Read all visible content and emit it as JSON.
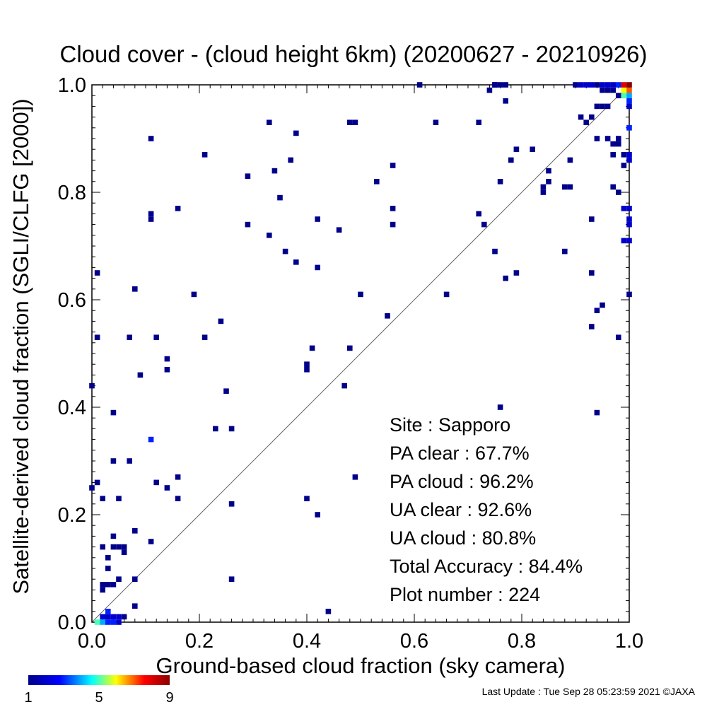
{
  "chart_data": {
    "type": "heatmap",
    "title": "Cloud cover - (cloud height 6km)  (20200627 - 20210926)",
    "xlabel": "Ground-based cloud fraction (sky camera)",
    "ylabel": "Satellite-derived cloud fraction (SGLI/CLFG [2000])",
    "xlim": [
      0.0,
      1.0
    ],
    "ylim": [
      0.0,
      1.0
    ],
    "x_ticks": [
      "0.0",
      "0.2",
      "0.4",
      "0.6",
      "0.8",
      "1.0"
    ],
    "y_ticks": [
      "0.0",
      "0.2",
      "0.4",
      "0.6",
      "0.8",
      "1.0"
    ],
    "diagonal_line": true,
    "colorbar": {
      "min_label": "1",
      "mid_label": "5",
      "max_label": "9",
      "colors": [
        "#00008b",
        "#0000ff",
        "#00ffff",
        "#ffff00",
        "#ff0000",
        "#8b0000"
      ]
    },
    "stats": [
      {
        "label": "Site : Sapporo"
      },
      {
        "label": "PA clear :  67.7%"
      },
      {
        "label": "PA cloud :  96.2%"
      },
      {
        "label": "UA clear :  92.6%"
      },
      {
        "label": "UA cloud :  80.8%"
      },
      {
        "label": "Total Accuracy :  84.4%"
      },
      {
        "label": "Plot number :       224"
      }
    ],
    "points": [
      [
        0.01,
        0.0,
        5
      ],
      [
        0.02,
        0.0,
        4
      ],
      [
        0.03,
        0.0,
        3
      ],
      [
        0.04,
        0.0,
        3
      ],
      [
        0.05,
        0.0,
        2
      ],
      [
        0.02,
        0.01,
        2
      ],
      [
        0.03,
        0.01,
        2
      ],
      [
        0.04,
        0.01,
        2
      ],
      [
        0.05,
        0.01,
        2
      ],
      [
        0.03,
        0.02,
        3
      ],
      [
        0.06,
        0.01,
        1
      ],
      [
        0.08,
        0.03,
        1
      ],
      [
        0.02,
        0.07,
        1
      ],
      [
        0.03,
        0.07,
        1
      ],
      [
        0.04,
        0.07,
        1
      ],
      [
        0.05,
        0.08,
        1
      ],
      [
        0.02,
        0.06,
        1
      ],
      [
        0.03,
        0.1,
        1
      ],
      [
        0.03,
        0.12,
        1
      ],
      [
        0.02,
        0.14,
        1
      ],
      [
        0.04,
        0.14,
        1
      ],
      [
        0.05,
        0.14,
        1
      ],
      [
        0.06,
        0.14,
        1
      ],
      [
        0.06,
        0.13,
        1
      ],
      [
        0.04,
        0.16,
        1
      ],
      [
        0.08,
        0.17,
        1
      ],
      [
        0.11,
        0.15,
        1
      ],
      [
        0.08,
        0.08,
        1
      ],
      [
        0.26,
        0.08,
        1
      ],
      [
        0.44,
        0.02,
        1
      ],
      [
        0.02,
        0.23,
        1
      ],
      [
        0.05,
        0.23,
        1
      ],
      [
        0.0,
        0.25,
        1
      ],
      [
        0.01,
        0.26,
        1
      ],
      [
        0.04,
        0.3,
        1
      ],
      [
        0.07,
        0.3,
        1
      ],
      [
        0.12,
        0.26,
        1
      ],
      [
        0.14,
        0.25,
        1
      ],
      [
        0.16,
        0.27,
        1
      ],
      [
        0.16,
        0.23,
        1
      ],
      [
        0.26,
        0.22,
        1
      ],
      [
        0.4,
        0.23,
        1
      ],
      [
        0.42,
        0.2,
        1
      ],
      [
        0.49,
        0.27,
        1
      ],
      [
        0.11,
        0.34,
        3
      ],
      [
        0.23,
        0.36,
        1
      ],
      [
        0.26,
        0.36,
        1
      ],
      [
        0.25,
        0.43,
        1
      ],
      [
        0.04,
        0.39,
        1
      ],
      [
        0.0,
        0.44,
        1
      ],
      [
        0.09,
        0.46,
        1
      ],
      [
        0.14,
        0.47,
        1
      ],
      [
        0.14,
        0.49,
        1
      ],
      [
        0.4,
        0.47,
        1
      ],
      [
        0.4,
        0.48,
        1
      ],
      [
        0.47,
        0.44,
        1
      ],
      [
        0.41,
        0.51,
        1
      ],
      [
        0.48,
        0.51,
        1
      ],
      [
        0.01,
        0.53,
        1
      ],
      [
        0.07,
        0.53,
        1
      ],
      [
        0.12,
        0.53,
        1
      ],
      [
        0.21,
        0.53,
        1
      ],
      [
        0.24,
        0.56,
        1
      ],
      [
        0.55,
        0.57,
        1
      ],
      [
        0.08,
        0.62,
        1
      ],
      [
        0.19,
        0.61,
        1
      ],
      [
        0.5,
        0.61,
        1
      ],
      [
        0.66,
        0.61,
        1
      ],
      [
        0.01,
        0.65,
        1
      ],
      [
        0.38,
        0.67,
        1
      ],
      [
        0.42,
        0.66,
        1
      ],
      [
        0.36,
        0.69,
        1
      ],
      [
        0.33,
        0.72,
        1
      ],
      [
        0.29,
        0.74,
        1
      ],
      [
        0.46,
        0.73,
        1
      ],
      [
        0.42,
        0.75,
        1
      ],
      [
        0.11,
        0.75,
        1
      ],
      [
        0.11,
        0.76,
        1
      ],
      [
        0.16,
        0.77,
        1
      ],
      [
        0.56,
        0.74,
        1
      ],
      [
        0.56,
        0.77,
        1
      ],
      [
        0.72,
        0.76,
        1
      ],
      [
        0.73,
        0.74,
        1
      ],
      [
        0.75,
        0.69,
        1
      ],
      [
        0.77,
        0.64,
        1
      ],
      [
        0.79,
        0.65,
        1
      ],
      [
        0.35,
        0.79,
        1
      ],
      [
        0.29,
        0.83,
        1
      ],
      [
        0.34,
        0.84,
        1
      ],
      [
        0.37,
        0.86,
        1
      ],
      [
        0.21,
        0.87,
        1
      ],
      [
        0.53,
        0.82,
        1
      ],
      [
        0.56,
        0.85,
        1
      ],
      [
        0.11,
        0.9,
        1
      ],
      [
        0.33,
        0.93,
        1
      ],
      [
        0.38,
        0.91,
        1
      ],
      [
        0.48,
        0.93,
        1
      ],
      [
        0.49,
        0.93,
        1
      ],
      [
        0.64,
        0.93,
        1
      ],
      [
        0.72,
        0.93,
        1
      ],
      [
        0.76,
        0.82,
        1
      ],
      [
        0.78,
        0.86,
        1
      ],
      [
        0.79,
        0.88,
        1
      ],
      [
        0.82,
        0.88,
        1
      ],
      [
        0.84,
        0.8,
        1
      ],
      [
        0.84,
        0.81,
        1
      ],
      [
        0.85,
        0.84,
        1
      ],
      [
        0.85,
        0.82,
        1
      ],
      [
        0.88,
        0.81,
        1
      ],
      [
        0.89,
        0.81,
        1
      ],
      [
        0.89,
        0.86,
        1
      ],
      [
        0.88,
        0.69,
        1
      ],
      [
        0.93,
        0.65,
        1
      ],
      [
        0.93,
        0.55,
        1
      ],
      [
        0.94,
        0.58,
        1
      ],
      [
        0.95,
        0.59,
        1
      ],
      [
        0.94,
        0.39,
        1
      ],
      [
        0.76,
        0.4,
        1
      ],
      [
        0.91,
        0.94,
        1
      ],
      [
        0.92,
        0.93,
        1
      ],
      [
        0.93,
        0.94,
        1
      ],
      [
        0.94,
        0.96,
        1
      ],
      [
        0.95,
        0.96,
        1
      ],
      [
        0.96,
        0.96,
        1
      ],
      [
        0.94,
        0.9,
        1
      ],
      [
        0.96,
        0.9,
        1
      ],
      [
        0.97,
        0.89,
        1
      ],
      [
        0.98,
        0.89,
        1
      ],
      [
        0.98,
        0.9,
        1
      ],
      [
        0.97,
        0.87,
        1
      ],
      [
        0.99,
        0.85,
        1
      ],
      [
        0.99,
        0.87,
        1
      ],
      [
        1.0,
        0.86,
        2
      ],
      [
        1.0,
        0.87,
        2
      ],
      [
        0.97,
        0.81,
        1
      ],
      [
        0.98,
        0.8,
        1
      ],
      [
        0.99,
        0.77,
        2
      ],
      [
        1.0,
        0.77,
        2
      ],
      [
        1.0,
        0.75,
        2
      ],
      [
        1.0,
        0.74,
        2
      ],
      [
        0.99,
        0.71,
        2
      ],
      [
        1.0,
        0.71,
        2
      ],
      [
        0.98,
        0.53,
        1
      ],
      [
        1.0,
        0.61,
        1
      ],
      [
        0.93,
        0.75,
        1
      ],
      [
        1.0,
        0.92,
        3
      ],
      [
        1.0,
        0.97,
        3
      ],
      [
        1.0,
        0.96,
        2
      ],
      [
        0.98,
        0.98,
        1
      ],
      [
        0.99,
        0.98,
        5
      ],
      [
        1.0,
        0.98,
        4
      ],
      [
        0.99,
        0.99,
        6
      ],
      [
        1.0,
        0.99,
        7
      ],
      [
        1.0,
        1.0,
        9
      ],
      [
        0.99,
        1.0,
        8
      ],
      [
        0.98,
        1.0,
        3
      ],
      [
        0.97,
        1.0,
        2
      ],
      [
        0.96,
        1.0,
        2
      ],
      [
        0.95,
        1.0,
        2
      ],
      [
        0.94,
        1.0,
        1
      ],
      [
        0.93,
        1.0,
        2
      ],
      [
        0.92,
        1.0,
        2
      ],
      [
        0.91,
        1.0,
        2
      ],
      [
        0.9,
        1.0,
        1
      ],
      [
        0.75,
        1.0,
        1
      ],
      [
        0.76,
        1.0,
        1
      ],
      [
        0.77,
        1.0,
        1
      ],
      [
        0.74,
        0.99,
        1
      ],
      [
        0.61,
        1.0,
        1
      ],
      [
        0.77,
        0.97,
        1
      ],
      [
        0.75,
        1.0,
        1
      ],
      [
        0.95,
        0.99,
        1
      ],
      [
        0.96,
        0.99,
        1
      ],
      [
        0.97,
        0.99,
        1
      ]
    ]
  },
  "footer": {
    "last_update": "Last Update : Tue Sep 28 05:23:59 2021  ©JAXA"
  }
}
